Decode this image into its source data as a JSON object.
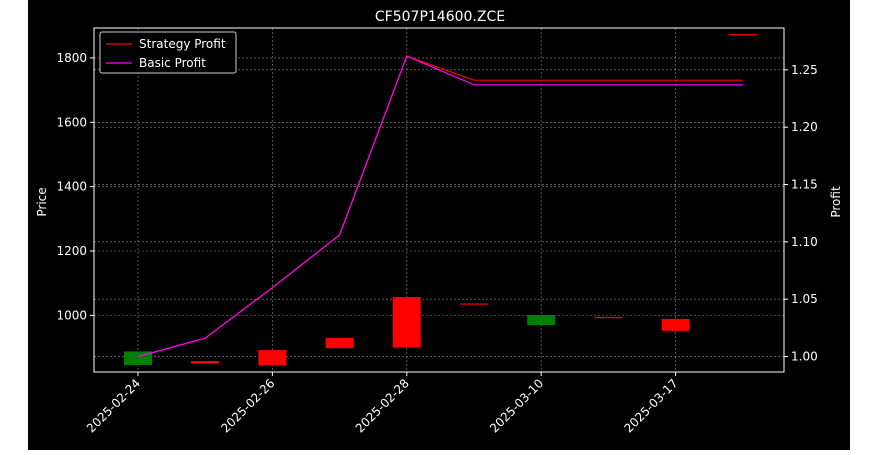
{
  "chart_data": {
    "type": "candlestick+line",
    "title": "CF507P14600.ZCE",
    "ylabel_left": "Price",
    "ylabel_right": "Profit",
    "ylim_left": [
      824,
      1893
    ],
    "ylim_right": [
      0.9865,
      1.2865
    ],
    "left_ticks": [
      1000,
      1200,
      1400,
      1600,
      1800
    ],
    "right_ticks": [
      "1.00",
      "1.05",
      "1.10",
      "1.15",
      "1.20",
      "1.25"
    ],
    "x_ticks": [
      {
        "label": "2025-02-24",
        "index": 0
      },
      {
        "label": "2025-02-26",
        "index": 2
      },
      {
        "label": "2025-02-28",
        "index": 4
      },
      {
        "label": "2025-03-10",
        "index": 6
      },
      {
        "label": "2025-03-17",
        "index": 8
      }
    ],
    "x_count": 10,
    "candles": [
      {
        "open": 888,
        "close": 846,
        "high": 888,
        "low": 846
      },
      {
        "open": 850,
        "close": 858,
        "high": 858,
        "low": 850
      },
      {
        "open": 845,
        "close": 892,
        "high": 892,
        "low": 845
      },
      {
        "open": 898,
        "close": 930,
        "high": 930,
        "low": 898
      },
      {
        "open": 900,
        "close": 1057,
        "high": 1057,
        "low": 900
      },
      {
        "open": 1034,
        "close": 1037,
        "high": 1037,
        "low": 1034
      },
      {
        "open": 1001,
        "close": 970,
        "high": 1001,
        "low": 970
      },
      {
        "open": 992,
        "close": 995,
        "high": 995,
        "low": 992
      },
      {
        "open": 952,
        "close": 989,
        "high": 989,
        "low": 952
      },
      {
        "open": 1871,
        "close": 1874,
        "high": 1874,
        "low": 1871
      }
    ],
    "series": [
      {
        "name": "Strategy Profit",
        "color": "#ff0000",
        "values": [
          1.0,
          1.016,
          1.06,
          1.106,
          1.262,
          1.241,
          1.241,
          1.241,
          1.241,
          1.241
        ]
      },
      {
        "name": "Basic Profit",
        "color": "#ff00ff",
        "values": [
          1.0,
          1.016,
          1.06,
          1.106,
          1.262,
          1.237,
          1.237,
          1.237,
          1.237,
          1.237
        ]
      }
    ],
    "up_color": "#ff0000",
    "down_color": "#008000",
    "grid": true,
    "legend_position": "top-left"
  }
}
